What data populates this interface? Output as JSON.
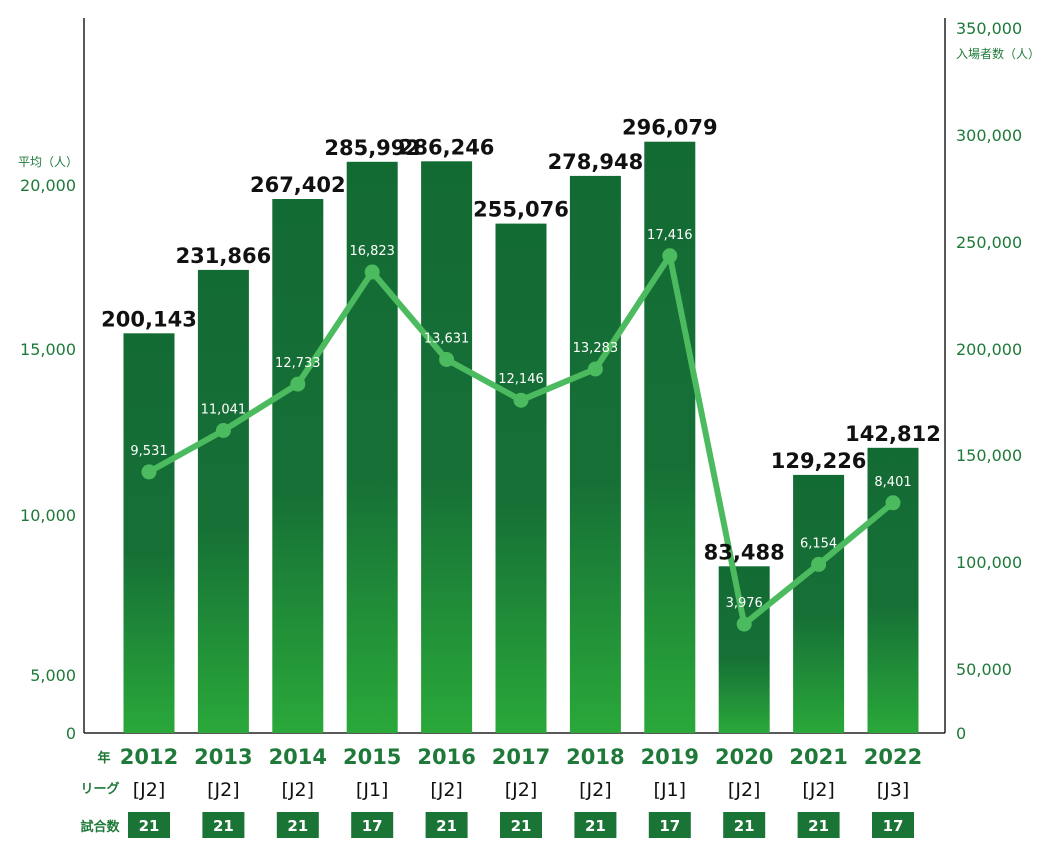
{
  "colors": {
    "bar_top": "#136b34",
    "bar_bottom": "#2aa83a",
    "line": "#4cbb5f",
    "axis_text": "#1f7a3a",
    "games_box": "#1a7435"
  },
  "axes": {
    "left_title": "平均（人）",
    "right_title": "入場者数（人）",
    "left_ticks": [
      "0",
      "5,000",
      "10,000",
      "15,000",
      "20,000"
    ],
    "right_ticks": [
      "0",
      "50,000",
      "100,000",
      "150,000",
      "200,000",
      "250,000",
      "300,000",
      "350,000"
    ]
  },
  "row_labels": {
    "year": "年",
    "league": "リーグ",
    "games": "試合数"
  },
  "chart_data": {
    "type": "bar",
    "categories": [
      "2012",
      "2013",
      "2014",
      "2015",
      "2016",
      "2017",
      "2018",
      "2019",
      "2020",
      "2021",
      "2022"
    ],
    "leagues": [
      "[J2]",
      "[J2]",
      "[J2]",
      "[J1]",
      "[J2]",
      "[J2]",
      "[J2]",
      "[J1]",
      "[J2]",
      "[J2]",
      "[J3]"
    ],
    "games": [
      "21",
      "21",
      "21",
      "17",
      "21",
      "21",
      "21",
      "17",
      "21",
      "21",
      "17"
    ],
    "series": [
      {
        "name": "入場者数（人）",
        "type": "bar",
        "axis": "right",
        "values": [
          200143,
          231866,
          267402,
          285992,
          286246,
          255076,
          278948,
          296079,
          83488,
          129226,
          142812
        ],
        "labels": [
          "200,143",
          "231,866",
          "267,402",
          "285,992",
          "286,246",
          "255,076",
          "278,948",
          "296,079",
          "83,488",
          "129,226",
          "142,812"
        ]
      },
      {
        "name": "平均（人）",
        "type": "line",
        "axis": "left",
        "values": [
          9531,
          11041,
          12733,
          16823,
          13631,
          12146,
          13283,
          17416,
          3976,
          6154,
          8401
        ],
        "labels": [
          "9,531",
          "11,041",
          "12,733",
          "16,823",
          "13,631",
          "12,146",
          "13,283",
          "17,416",
          "3,976",
          "6,154",
          "8,401"
        ]
      }
    ],
    "ylim_left": [
      0,
      20000
    ],
    "ylim_right": [
      0,
      350000
    ],
    "grid": false
  }
}
